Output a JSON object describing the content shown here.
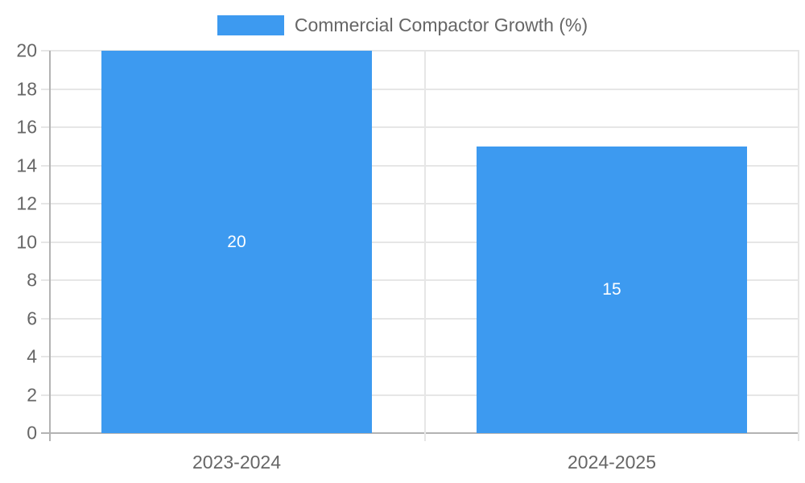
{
  "chart_data": {
    "type": "bar",
    "title": "Commercial Compactor Growth (%)",
    "categories": [
      "2023-2024",
      "2024-2025"
    ],
    "series": [
      {
        "name": "Commercial Compactor Growth (%)",
        "values": [
          20,
          15
        ]
      }
    ],
    "data_labels": [
      "20",
      "15"
    ],
    "xlabel": "",
    "ylabel": "",
    "ylim": [
      0,
      20
    ],
    "y_ticks": [
      0,
      2,
      4,
      6,
      8,
      10,
      12,
      14,
      16,
      18,
      20
    ],
    "grid": true,
    "legend_position": "top",
    "bar_width_fraction": 0.723,
    "colors": {
      "bar": "#3D9AF0",
      "data_label": "#FFFFFF",
      "grid_line": "#E6E6E6",
      "zero_line": "#B3B3B3",
      "axis_text": "#666666",
      "legend_text": "#666666",
      "background": "#FFFFFF"
    }
  }
}
